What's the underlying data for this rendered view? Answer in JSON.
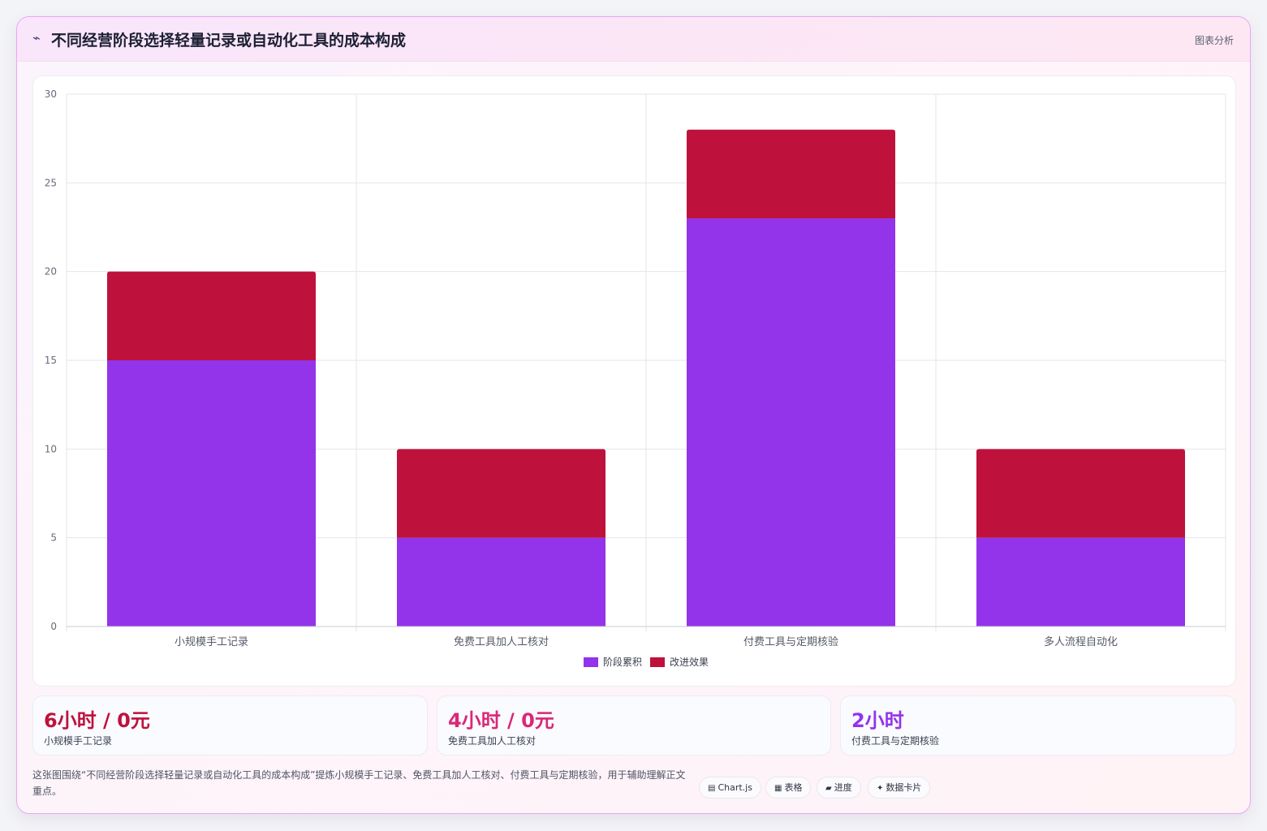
{
  "header": {
    "icon": "⌁",
    "title": "不同经营阶段选择轻量记录或自动化工具的成本构成",
    "tag": "图表分析"
  },
  "chart_data": {
    "type": "bar",
    "stacked": true,
    "categories": [
      "小规模手工记录",
      "免费工具加人工核对",
      "付费工具与定期核验",
      "多人流程自动化"
    ],
    "series": [
      {
        "name": "阶段累积",
        "values": [
          15,
          5,
          23,
          5
        ],
        "color": "#9333ea"
      },
      {
        "name": "改进效果",
        "values": [
          5,
          5,
          5,
          5
        ],
        "color": "#be123c"
      }
    ],
    "ylim": [
      0,
      30
    ],
    "yticks": [
      0,
      5,
      10,
      15,
      20,
      25,
      30
    ],
    "grid": true,
    "legend_position": "bottom"
  },
  "stats": [
    {
      "value": "6小时 / 0元",
      "label": "小规模手工记录",
      "color": "#be123c"
    },
    {
      "value": "4小时 / 0元",
      "label": "免费工具加人工核对",
      "color": "#db2777"
    },
    {
      "value": "2小时",
      "label": "付费工具与定期核验",
      "color": "#9333ea"
    }
  ],
  "caption": "这张图围绕“不同经营阶段选择轻量记录或自动化工具的成本构成”提炼小规模手工记录、免费工具加人工核对、付费工具与定期核验，用于辅助理解正文重点。",
  "chips": [
    {
      "icon": "▤",
      "label": "Chart.js"
    },
    {
      "icon": "▦",
      "label": "表格"
    },
    {
      "icon": "▰",
      "label": "进度"
    },
    {
      "icon": "✦",
      "label": "数据卡片"
    }
  ]
}
